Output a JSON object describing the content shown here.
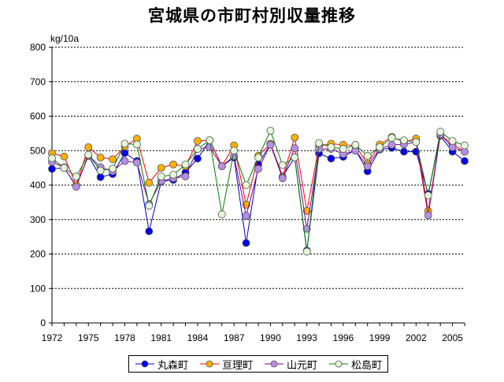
{
  "chart_data": {
    "type": "line",
    "title": "宮城県の市町村別収量推移",
    "ylabel": "kg/10a",
    "xlabel": "",
    "ylim": [
      0,
      800
    ],
    "yticks": [
      0,
      100,
      200,
      300,
      400,
      500,
      600,
      700,
      800
    ],
    "xlim": [
      1972,
      2006
    ],
    "xticks": [
      1972,
      1975,
      1978,
      1981,
      1984,
      1987,
      1990,
      1993,
      1996,
      1999,
      2002,
      2005
    ],
    "x": [
      1972,
      1973,
      1974,
      1975,
      1976,
      1977,
      1978,
      1979,
      1980,
      1981,
      1982,
      1983,
      1984,
      1985,
      1986,
      1987,
      1988,
      1989,
      1990,
      1991,
      1992,
      1993,
      1994,
      1995,
      1996,
      1997,
      1998,
      1999,
      2000,
      2001,
      2002,
      2003,
      2004,
      2005,
      2006
    ],
    "series": [
      {
        "name": "丸森町",
        "line_color": "#0000cc",
        "marker_color": "#0000ee",
        "values": [
          447,
          450,
          398,
          485,
          423,
          432,
          493,
          470,
          266,
          410,
          415,
          437,
          477,
          530,
          455,
          480,
          232,
          460,
          520,
          425,
          480,
          210,
          492,
          477,
          482,
          502,
          440,
          503,
          508,
          497,
          497,
          375,
          543,
          497,
          470
        ]
      },
      {
        "name": "亘理町",
        "line_color": "#ff0000",
        "marker_color": "#ffb000",
        "values": [
          492,
          483,
          400,
          510,
          480,
          475,
          512,
          535,
          407,
          450,
          460,
          455,
          528,
          530,
          455,
          515,
          343,
          485,
          520,
          423,
          538,
          325,
          513,
          520,
          517,
          515,
          462,
          518,
          540,
          525,
          535,
          325,
          545,
          520,
          497
        ]
      },
      {
        "name": "山元町",
        "line_color": "#800080",
        "marker_color": "#b68ee6",
        "values": [
          467,
          452,
          395,
          487,
          452,
          440,
          470,
          465,
          345,
          412,
          420,
          425,
          505,
          510,
          455,
          484,
          311,
          447,
          517,
          420,
          507,
          273,
          505,
          505,
          490,
          500,
          455,
          505,
          517,
          518,
          525,
          312,
          547,
          510,
          497
        ]
      },
      {
        "name": "松島町",
        "line_color": "#008000",
        "marker_color": "#e4f8d8",
        "values": [
          478,
          450,
          425,
          488,
          442,
          448,
          520,
          518,
          340,
          425,
          430,
          460,
          505,
          530,
          315,
          500,
          400,
          480,
          558,
          458,
          480,
          207,
          522,
          510,
          505,
          517,
          485,
          510,
          537,
          530,
          525,
          370,
          555,
          528,
          515
        ]
      }
    ]
  }
}
